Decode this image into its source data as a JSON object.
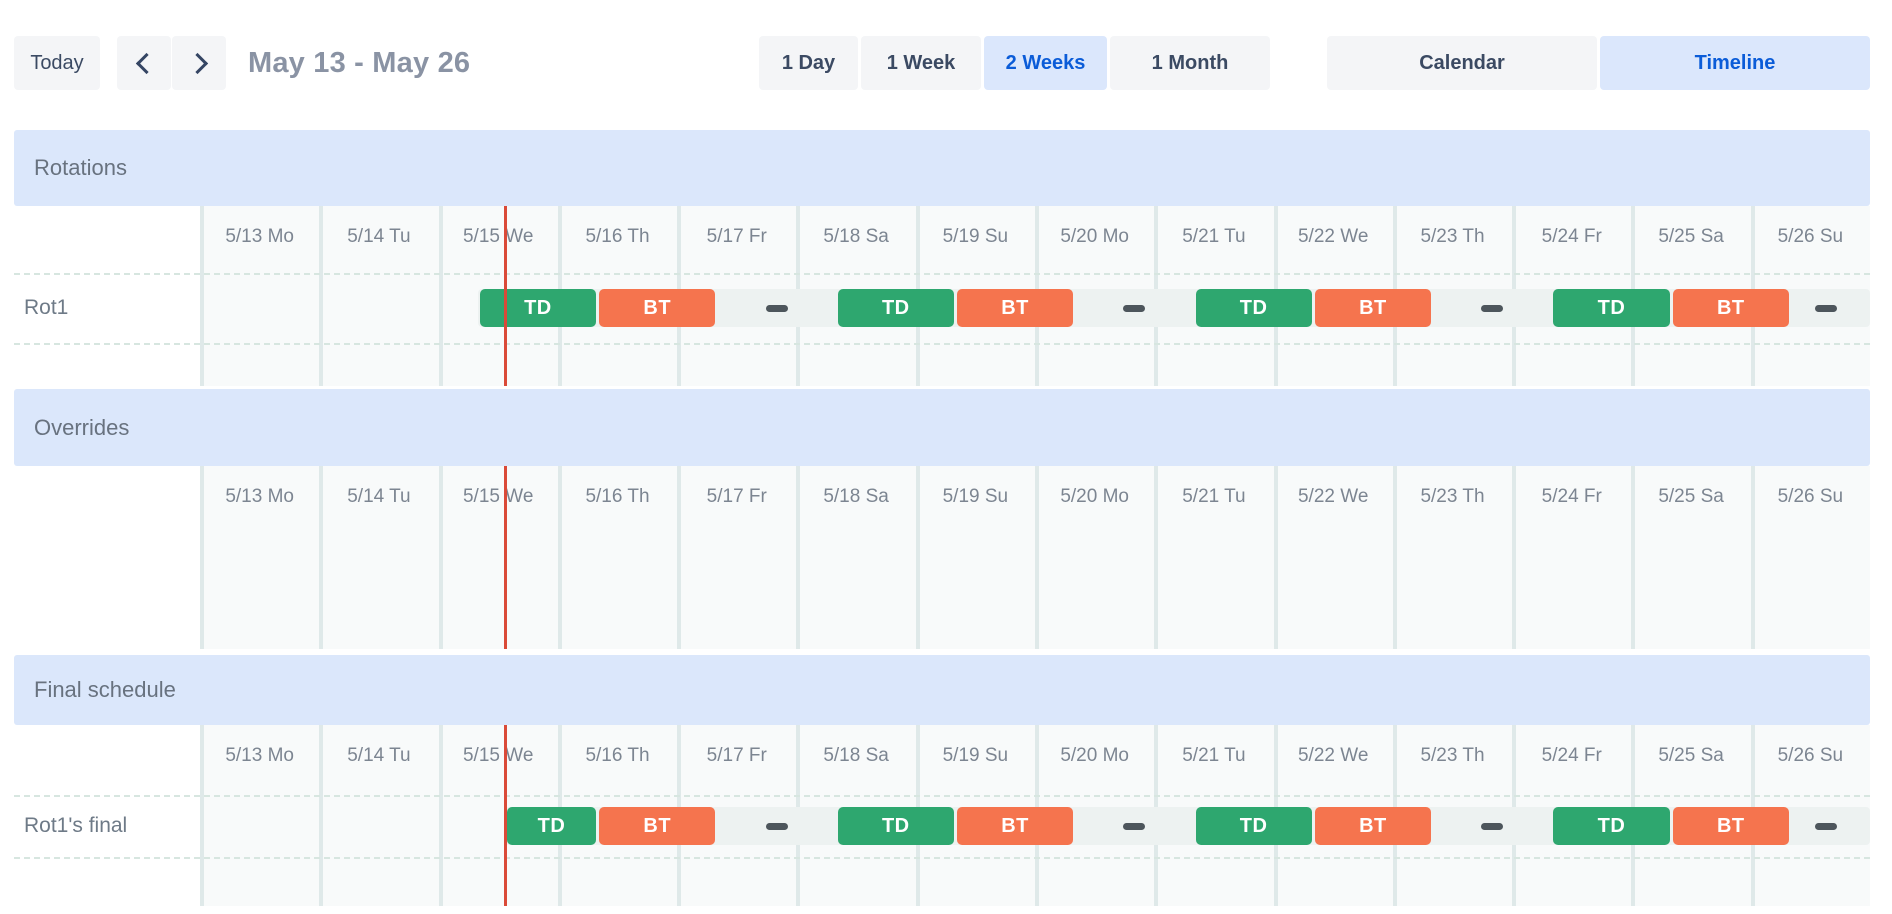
{
  "toolbar": {
    "today_label": "Today",
    "title": "May 13 - May 26",
    "views": [
      {
        "label": "1 Day",
        "active": false
      },
      {
        "label": "1 Week",
        "active": false
      },
      {
        "label": "2 Weeks",
        "active": true
      },
      {
        "label": "1 Month",
        "active": false
      }
    ],
    "modes": [
      {
        "label": "Calendar",
        "active": false
      },
      {
        "label": "Timeline",
        "active": true
      }
    ]
  },
  "timeline": {
    "day_labels": [
      "5/13 Mo",
      "5/14 Tu",
      "5/15 We",
      "5/16 Th",
      "5/17 Fr",
      "5/18 Sa",
      "5/19 Su",
      "5/20 Mo",
      "5/21 Tu",
      "5/22 We",
      "5/23 Th",
      "5/24 Fr",
      "5/25 Sa",
      "5/26 Su"
    ],
    "now_day_offset": 2.56
  },
  "sections": [
    {
      "id": "rotations",
      "title": "Rotations",
      "rows": [
        {
          "label": "Rot1",
          "track_start": 2.333,
          "track_end": 14,
          "events": [
            {
              "label": "TD",
              "type": "td",
              "start": 2.333,
              "end": 3.333
            },
            {
              "label": "BT",
              "type": "bt",
              "start": 3.333,
              "end": 4.333
            },
            {
              "label": "TD",
              "type": "td",
              "start": 5.333,
              "end": 6.333
            },
            {
              "label": "BT",
              "type": "bt",
              "start": 6.333,
              "end": 7.333
            },
            {
              "label": "TD",
              "type": "td",
              "start": 8.333,
              "end": 9.333
            },
            {
              "label": "BT",
              "type": "bt",
              "start": 9.333,
              "end": 10.333
            },
            {
              "label": "TD",
              "type": "td",
              "start": 11.333,
              "end": 12.333
            },
            {
              "label": "BT",
              "type": "bt",
              "start": 12.333,
              "end": 13.333
            }
          ],
          "gap_dashes": [
            4.833,
            7.833,
            10.833,
            13.63
          ]
        }
      ]
    },
    {
      "id": "overrides",
      "title": "Overrides",
      "rows": []
    },
    {
      "id": "final",
      "title": "Final schedule",
      "rows": [
        {
          "label": "Rot1's final",
          "track_start": 2.56,
          "track_end": 14,
          "events": [
            {
              "label": "TD",
              "type": "td",
              "start": 2.56,
              "end": 3.333
            },
            {
              "label": "BT",
              "type": "bt",
              "start": 3.333,
              "end": 4.333
            },
            {
              "label": "TD",
              "type": "td",
              "start": 5.333,
              "end": 6.333
            },
            {
              "label": "BT",
              "type": "bt",
              "start": 6.333,
              "end": 7.333
            },
            {
              "label": "TD",
              "type": "td",
              "start": 8.333,
              "end": 9.333
            },
            {
              "label": "BT",
              "type": "bt",
              "start": 9.333,
              "end": 10.333
            },
            {
              "label": "TD",
              "type": "td",
              "start": 11.333,
              "end": 12.333
            },
            {
              "label": "BT",
              "type": "bt",
              "start": 12.333,
              "end": 13.333
            }
          ],
          "gap_dashes": [
            4.833,
            7.833,
            10.833,
            13.63
          ]
        }
      ]
    }
  ],
  "colors": {
    "shift_td": "#2ea76f",
    "shift_bt": "#f5744e",
    "track": "#edf2f1",
    "gap_dash": "#4d565c",
    "now_line": "#da4a38",
    "header_band": "#dbe7fb",
    "active_bg": "#dbe7fc",
    "active_text": "#0b5cd8"
  }
}
